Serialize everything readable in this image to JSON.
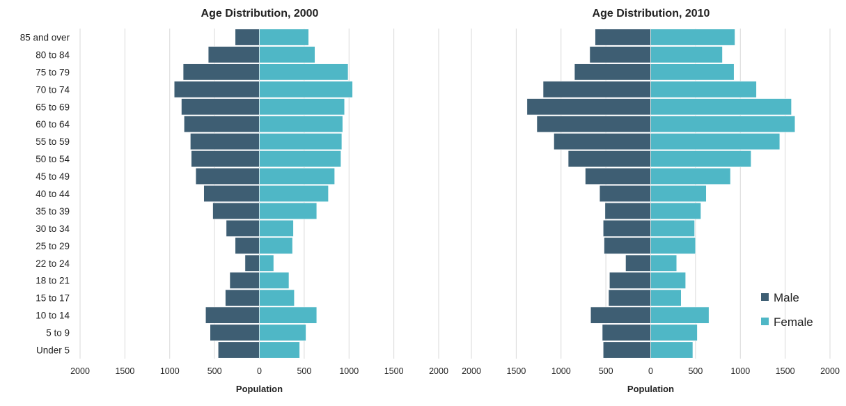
{
  "colors": {
    "male": "#3e5e73",
    "female": "#4fb7c6",
    "grid": "#d9d9d9"
  },
  "legend": {
    "male_label": "Male",
    "female_label": "Female",
    "placement": "right, inside second chart"
  },
  "categories": [
    "85 and over",
    "80 to 84",
    "75 to 79",
    "70 to 74",
    "65 to 69",
    "60 to 64",
    "55 to 59",
    "50 to 54",
    "45 to 49",
    "40 to 44",
    "35 to 39",
    "30 to 34",
    "25 to 29",
    "22 to 24",
    "18 to 21",
    "15 to 17",
    "10 to 14",
    "5 to 9",
    "Under 5"
  ],
  "chart_data": [
    {
      "type": "bar",
      "title": "Age Distribution, 2000",
      "xlabel": "Population",
      "xlim": [
        -2000,
        2000
      ],
      "xticks": [
        -2000,
        -1500,
        -1000,
        -500,
        0,
        500,
        1000,
        1500,
        2000
      ],
      "tick_labels": [
        "2000",
        "1500",
        "1000",
        "500",
        "0",
        "500",
        "1000",
        "1500",
        "2000"
      ],
      "grid": true,
      "show_categories": true,
      "categories": [
        "85 and over",
        "80 to 84",
        "75 to 79",
        "70 to 74",
        "65 to 69",
        "60 to 64",
        "55 to 59",
        "50 to 54",
        "45 to 49",
        "40 to 44",
        "35 to 39",
        "30 to 34",
        "25 to 29",
        "22 to 24",
        "18 to 21",
        "15 to 17",
        "10 to 14",
        "5 to 9",
        "Under 5"
      ],
      "series": [
        {
          "name": "Male",
          "values": [
            270,
            570,
            850,
            950,
            870,
            840,
            770,
            760,
            710,
            620,
            520,
            370,
            270,
            160,
            330,
            380,
            600,
            550,
            460
          ]
        },
        {
          "name": "Female",
          "values": [
            550,
            620,
            990,
            1040,
            950,
            930,
            920,
            910,
            840,
            770,
            640,
            380,
            370,
            160,
            330,
            390,
            640,
            520,
            450
          ]
        }
      ]
    },
    {
      "type": "bar",
      "title": "Age Distribution, 2010",
      "xlabel": "Population",
      "xlim": [
        -2000,
        2000
      ],
      "xticks": [
        -2000,
        -1500,
        -1000,
        -500,
        0,
        500,
        1000,
        1500,
        2000
      ],
      "tick_labels": [
        "2000",
        "1500",
        "1000",
        "500",
        "0",
        "500",
        "1000",
        "1500",
        "2000"
      ],
      "grid": true,
      "show_categories": false,
      "categories": [
        "85 and over",
        "80 to 84",
        "75 to 79",
        "70 to 74",
        "65 to 69",
        "60 to 64",
        "55 to 59",
        "50 to 54",
        "45 to 49",
        "40 to 44",
        "35 to 39",
        "30 to 34",
        "25 to 29",
        "22 to 24",
        "18 to 21",
        "15 to 17",
        "10 to 14",
        "5 to 9",
        "Under 5"
      ],
      "series": [
        {
          "name": "Male",
          "values": [
            620,
            680,
            850,
            1200,
            1380,
            1270,
            1080,
            920,
            730,
            570,
            510,
            530,
            520,
            280,
            460,
            470,
            670,
            540,
            530
          ]
        },
        {
          "name": "Female",
          "values": [
            940,
            800,
            930,
            1180,
            1570,
            1610,
            1440,
            1120,
            890,
            620,
            560,
            490,
            500,
            290,
            390,
            340,
            650,
            520,
            470
          ]
        }
      ]
    }
  ]
}
